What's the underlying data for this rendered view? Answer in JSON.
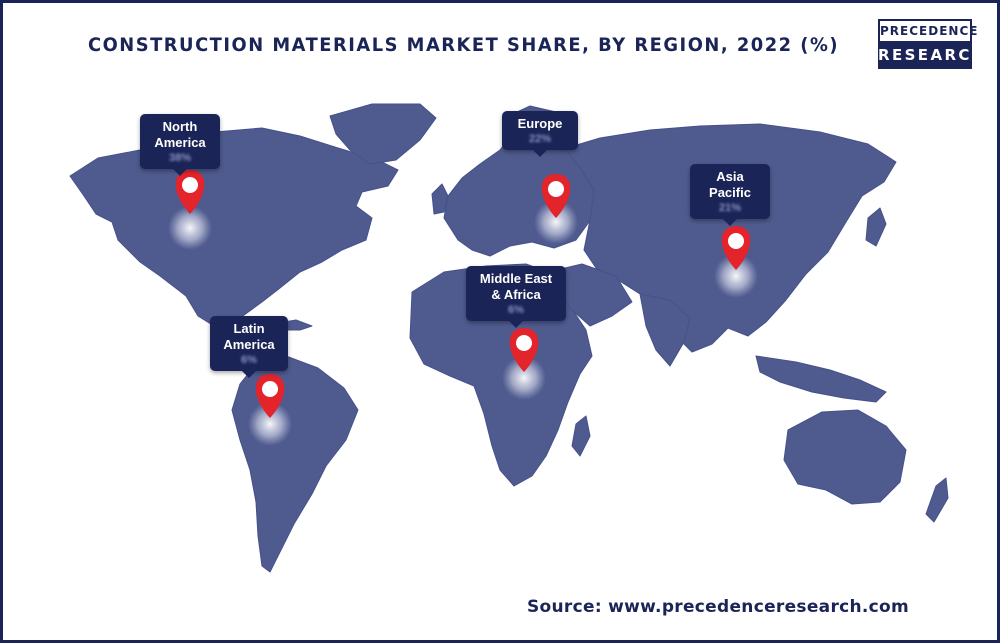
{
  "title": "CONSTRUCTION MATERIALS MARKET SHARE, BY REGION, 2022 (%)",
  "logo": {
    "line1": "PRECEDENCE",
    "line2": "RESEARCH"
  },
  "source": "Source: www.precedenceresearch.com",
  "colors": {
    "land": "#4f5b8f",
    "ocean": "#ffffff",
    "callout": "#1b2456",
    "pin": "#e3242b",
    "title": "#1b2456"
  },
  "markers": [
    {
      "region": "North\nAmerica",
      "share": "38%",
      "icon": "map-pin-icon"
    },
    {
      "region": "Europe",
      "share": "22%",
      "icon": "map-pin-icon"
    },
    {
      "region": "Asia\nPacific",
      "share": "21%",
      "icon": "map-pin-icon"
    },
    {
      "region": "Middle East\n& Africa",
      "share": "6%",
      "icon": "map-pin-icon"
    },
    {
      "region": "Latin\nAmerica",
      "share": "6%",
      "icon": "map-pin-icon"
    }
  ]
}
